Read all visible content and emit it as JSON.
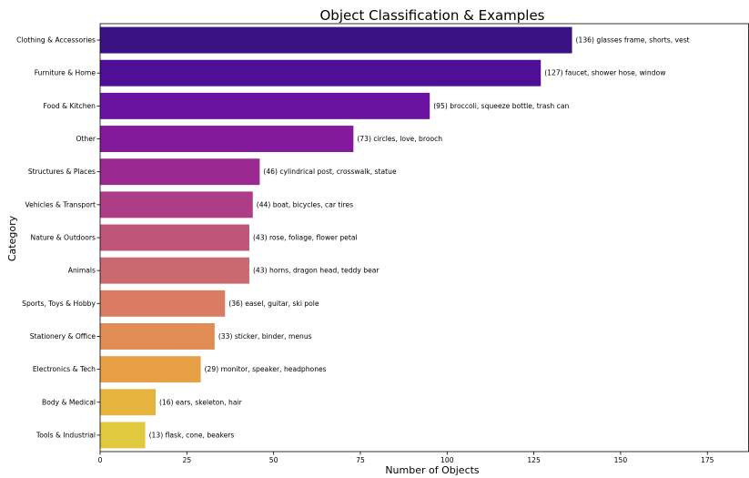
{
  "chart_data": {
    "type": "bar",
    "orientation": "horizontal",
    "title": "Object Classification & Examples",
    "xlabel": "Number of Objects",
    "ylabel": "Category",
    "xlim": [
      0,
      187
    ],
    "xticks": [
      0,
      25,
      50,
      75,
      100,
      125,
      150,
      175
    ],
    "grid": false,
    "categories": [
      "Clothing & Accessories",
      "Furniture & Home",
      "Food & Kitchen",
      "Other",
      "Structures & Places",
      "Vehicles & Transport",
      "Nature & Outdoors",
      "Animals",
      "Sports, Toys & Hobby",
      "Stationery & Office",
      "Electronics & Tech",
      "Body & Medical",
      "Tools & Industrial"
    ],
    "values": [
      136,
      127,
      95,
      73,
      46,
      44,
      43,
      43,
      36,
      33,
      29,
      16,
      13
    ],
    "annotations": [
      "(136) glasses frame, shorts, vest",
      "(127) faucet, shower hose, window",
      "(95) broccoli, squeeze bottle, trash can",
      "(73) circles, love, brooch",
      "(46) cylindrical post, crosswalk, statue",
      "(44) boat, bicycles, car tires",
      "(43) rose, foliage, flower petal",
      "(43) horns, dragon head, teddy bear",
      "(36) easel, guitar, ski pole",
      "(33) sticker, binder, menus",
      "(29) monitor, speaker, headphones",
      "(16) ears, skeleton, hair",
      "(13) flask, cone, beakers"
    ],
    "colors": [
      "#3a1284",
      "#4f0e98",
      "#6a13a0",
      "#831a9c",
      "#9a2992",
      "#ad3d86",
      "#bf5578",
      "#ca6a70",
      "#d97c62",
      "#e18c54",
      "#e8a047",
      "#e6b43e",
      "#e0c83f"
    ]
  }
}
